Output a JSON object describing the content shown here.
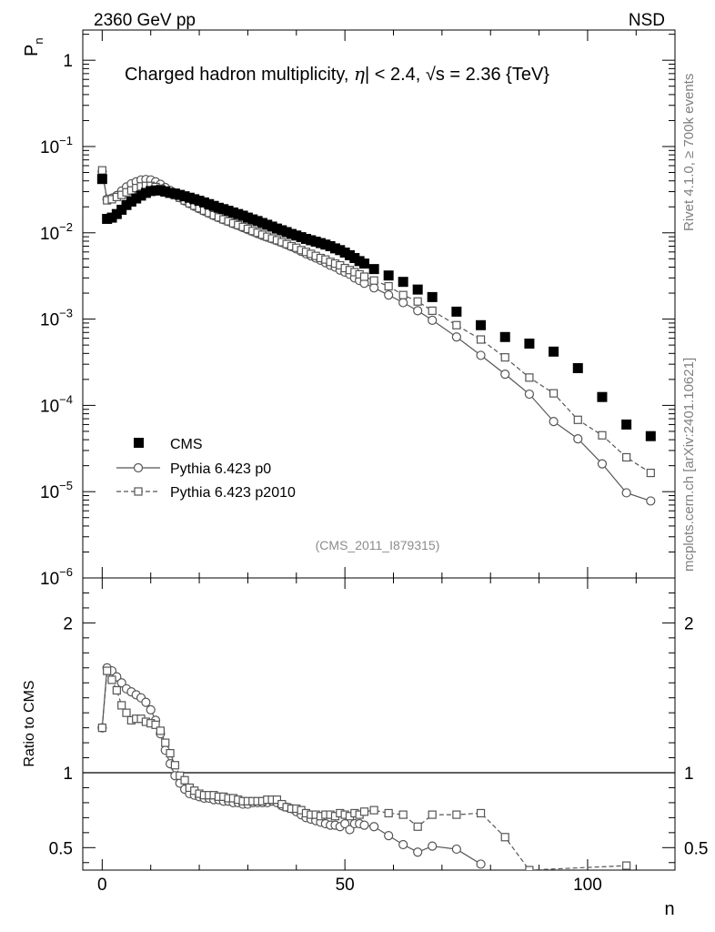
{
  "header": {
    "left_label": "2360 GeV pp",
    "right_label": "NSD"
  },
  "side_text": {
    "rivet": "Rivet 4.1.0, ≥ 700k events",
    "mcplots": "mcplots.cern.ch [arXiv:2401.10621]"
  },
  "chart_data": {
    "type": "scatter",
    "title": "Charged hadron multiplicity, |η| < 2.4, √s = 2.36 {TeV}",
    "title_parts": {
      "prefix": "Charged hadron multiplicity, ",
      "eta": "η",
      "middle": "| < 2.4, ",
      "sqrt": "√",
      "s": "s",
      "suffix": " = 2.36 {TeV}"
    },
    "analysis_tag": "(CMS_2011_I879315)",
    "xlabel": "n",
    "ylabel_main": {
      "base": "P",
      "sub": "n"
    },
    "ylabel_ratio": "Ratio to CMS",
    "xlim": [
      -4,
      118
    ],
    "xticks": [
      {
        "v": 0,
        "label": "0"
      },
      {
        "v": 50,
        "label": "50"
      },
      {
        "v": 100,
        "label": "100"
      }
    ],
    "main_ylim_log10": [
      -6,
      0.35
    ],
    "main_yticks": [
      {
        "exp": 0,
        "label": "1"
      },
      {
        "exp": -1,
        "base": "10",
        "sup": "−1"
      },
      {
        "exp": -2,
        "base": "10",
        "sup": "−2"
      },
      {
        "exp": -3,
        "base": "10",
        "sup": "−3"
      },
      {
        "exp": -4,
        "base": "10",
        "sup": "−4"
      },
      {
        "exp": -5,
        "base": "10",
        "sup": "−5"
      },
      {
        "exp": -6,
        "base": "10",
        "sup": "−6"
      }
    ],
    "ratio_ylim": [
      0.35,
      2.3
    ],
    "ratio_yticks": [
      {
        "v": 0.5,
        "label": "0.5"
      },
      {
        "v": 1,
        "label": "1"
      },
      {
        "v": 2,
        "label": "2"
      }
    ],
    "legend": {
      "position": "lower-left",
      "entries": [
        {
          "label": "CMS",
          "marker": "filled-square",
          "line": "none"
        },
        {
          "label": "Pythia 6.423 p0",
          "marker": "open-circle",
          "line": "solid"
        },
        {
          "label": "Pythia 6.423 p2010",
          "marker": "open-square",
          "line": "dashed"
        }
      ]
    },
    "series": [
      {
        "name": "CMS",
        "x": [
          0,
          1,
          2,
          3,
          4,
          5,
          6,
          7,
          8,
          9,
          10,
          11,
          12,
          13,
          14,
          15,
          16,
          17,
          18,
          19,
          20,
          21,
          22,
          23,
          24,
          25,
          26,
          27,
          28,
          29,
          30,
          31,
          32,
          33,
          34,
          35,
          36,
          37,
          38,
          39,
          40,
          41,
          42,
          43,
          44,
          45,
          46,
          47,
          48,
          49,
          50,
          51,
          52,
          53,
          54,
          56,
          59,
          62,
          65,
          68,
          73,
          78,
          83,
          88,
          93,
          98,
          103,
          108,
          113
        ],
        "y": [
          0.042,
          0.0145,
          0.015,
          0.0165,
          0.0185,
          0.021,
          0.023,
          0.025,
          0.027,
          0.029,
          0.0305,
          0.031,
          0.031,
          0.03,
          0.029,
          0.0285,
          0.0275,
          0.0265,
          0.0255,
          0.0245,
          0.0235,
          0.0225,
          0.0215,
          0.0205,
          0.0195,
          0.0188,
          0.018,
          0.0172,
          0.0165,
          0.0158,
          0.015,
          0.0143,
          0.0137,
          0.013,
          0.0124,
          0.0118,
          0.0112,
          0.0107,
          0.0102,
          0.0097,
          0.0093,
          0.0089,
          0.0085,
          0.0082,
          0.0079,
          0.0076,
          0.0073,
          0.007,
          0.0066,
          0.0063,
          0.0059,
          0.0055,
          0.0051,
          0.0047,
          0.0044,
          0.0038,
          0.0032,
          0.0027,
          0.0022,
          0.0018,
          0.00122,
          0.00085,
          0.00062,
          0.00052,
          0.00042,
          0.00027,
          0.000125,
          6e-05,
          4.4e-05
        ]
      },
      {
        "name": "Pythia 6.423 p0",
        "x": [
          0,
          1,
          2,
          3,
          4,
          5,
          6,
          7,
          8,
          9,
          10,
          11,
          12,
          13,
          14,
          15,
          16,
          17,
          18,
          19,
          20,
          21,
          22,
          23,
          24,
          25,
          26,
          27,
          28,
          29,
          30,
          31,
          32,
          33,
          34,
          35,
          36,
          37,
          38,
          39,
          40,
          41,
          42,
          43,
          44,
          45,
          46,
          47,
          48,
          49,
          50,
          51,
          52,
          53,
          54,
          56,
          59,
          62,
          65,
          68,
          73,
          78,
          83,
          88,
          93,
          98,
          103,
          108,
          113
        ],
        "y": [
          0.051,
          0.0245,
          0.0252,
          0.027,
          0.0305,
          0.034,
          0.037,
          0.039,
          0.041,
          0.0415,
          0.041,
          0.039,
          0.0365,
          0.0335,
          0.031,
          0.028,
          0.0255,
          0.0235,
          0.0218,
          0.0203,
          0.019,
          0.0178,
          0.0168,
          0.0158,
          0.015,
          0.0142,
          0.0135,
          0.0128,
          0.0122,
          0.0115,
          0.0109,
          0.0103,
          0.0098,
          0.0093,
          0.0089,
          0.0085,
          0.0081,
          0.0077,
          0.0073,
          0.0069,
          0.0065,
          0.0061,
          0.0057,
          0.0054,
          0.0051,
          0.0048,
          0.0045,
          0.0042,
          0.004,
          0.0037,
          0.0035,
          0.0033,
          0.003,
          0.0028,
          0.0026,
          0.0023,
          0.0019,
          0.00155,
          0.00125,
          0.00097,
          0.00062,
          0.00038,
          0.00023,
          0.000135,
          6.5e-05,
          4.1e-05,
          2.1e-05,
          9.7e-06,
          7.8e-06
        ]
      },
      {
        "name": "Pythia 6.423 p2010",
        "x": [
          0,
          1,
          2,
          3,
          4,
          5,
          6,
          7,
          8,
          9,
          10,
          11,
          12,
          13,
          14,
          15,
          16,
          17,
          18,
          19,
          20,
          21,
          22,
          23,
          24,
          25,
          26,
          27,
          28,
          29,
          30,
          31,
          32,
          33,
          34,
          35,
          36,
          37,
          38,
          39,
          40,
          41,
          42,
          43,
          44,
          45,
          46,
          47,
          48,
          49,
          50,
          51,
          52,
          53,
          54,
          56,
          59,
          62,
          65,
          68,
          73,
          78,
          83,
          88,
          93,
          98,
          103,
          108,
          113
        ],
        "y": [
          0.053,
          0.0238,
          0.0245,
          0.026,
          0.0275,
          0.0295,
          0.031,
          0.033,
          0.0345,
          0.035,
          0.035,
          0.034,
          0.0325,
          0.031,
          0.029,
          0.0272,
          0.0255,
          0.0237,
          0.022,
          0.0206,
          0.0193,
          0.0181,
          0.017,
          0.016,
          0.0151,
          0.0143,
          0.0136,
          0.0129,
          0.0123,
          0.0117,
          0.0111,
          0.0105,
          0.01,
          0.0095,
          0.009,
          0.0086,
          0.0082,
          0.0078,
          0.0074,
          0.007,
          0.0067,
          0.0063,
          0.006,
          0.0057,
          0.0054,
          0.0051,
          0.0049,
          0.0046,
          0.0044,
          0.0042,
          0.0039,
          0.0037,
          0.0035,
          0.0033,
          0.0031,
          0.0028,
          0.0024,
          0.0019,
          0.0016,
          0.00125,
          0.00085,
          0.00058,
          0.00036,
          0.00021,
          0.000138,
          6.8e-05,
          4.5e-05,
          2.5e-05,
          1.65e-05
        ]
      }
    ],
    "ratio_series": [
      {
        "name": "Pythia 6.423 p0",
        "x": [
          0,
          1,
          2,
          3,
          4,
          5,
          6,
          7,
          8,
          9,
          10,
          11,
          12,
          13,
          14,
          15,
          16,
          17,
          18,
          19,
          20,
          21,
          22,
          23,
          24,
          25,
          26,
          27,
          28,
          29,
          30,
          31,
          32,
          33,
          34,
          35,
          36,
          37,
          38,
          39,
          40,
          41,
          42,
          43,
          44,
          45,
          46,
          47,
          48,
          49,
          50,
          51,
          52,
          53,
          54,
          56,
          59,
          62,
          65,
          68,
          73,
          78
        ],
        "y": [
          1.3,
          1.7,
          1.68,
          1.64,
          1.6,
          1.56,
          1.54,
          1.52,
          1.5,
          1.47,
          1.42,
          1.35,
          1.26,
          1.15,
          1.06,
          0.98,
          0.93,
          0.89,
          0.86,
          0.85,
          0.84,
          0.83,
          0.83,
          0.82,
          0.82,
          0.81,
          0.81,
          0.8,
          0.8,
          0.79,
          0.79,
          0.8,
          0.8,
          0.8,
          0.8,
          0.81,
          0.8,
          0.78,
          0.77,
          0.76,
          0.74,
          0.72,
          0.7,
          0.69,
          0.68,
          0.67,
          0.66,
          0.65,
          0.65,
          0.64,
          0.66,
          0.62,
          0.66,
          0.66,
          0.65,
          0.64,
          0.58,
          0.52,
          0.47,
          0.51,
          0.49,
          0.39
        ]
      },
      {
        "name": "Pythia 6.423 p2010",
        "x": [
          0,
          1,
          2,
          3,
          4,
          5,
          6,
          7,
          8,
          9,
          10,
          11,
          12,
          13,
          14,
          15,
          16,
          17,
          18,
          19,
          20,
          21,
          22,
          23,
          24,
          25,
          26,
          27,
          28,
          29,
          30,
          31,
          32,
          33,
          34,
          35,
          36,
          37,
          38,
          39,
          40,
          41,
          42,
          43,
          44,
          45,
          46,
          47,
          48,
          49,
          50,
          51,
          52,
          53,
          54,
          56,
          59,
          62,
          65,
          68,
          73,
          78,
          83,
          88,
          108
        ],
        "y": [
          1.3,
          1.68,
          1.62,
          1.55,
          1.45,
          1.4,
          1.35,
          1.36,
          1.36,
          1.34,
          1.33,
          1.32,
          1.28,
          1.2,
          1.13,
          1.05,
          0.98,
          0.95,
          0.9,
          0.88,
          0.86,
          0.85,
          0.85,
          0.85,
          0.84,
          0.84,
          0.83,
          0.83,
          0.82,
          0.81,
          0.81,
          0.81,
          0.81,
          0.81,
          0.82,
          0.82,
          0.82,
          0.79,
          0.77,
          0.76,
          0.76,
          0.75,
          0.73,
          0.72,
          0.72,
          0.71,
          0.72,
          0.72,
          0.71,
          0.73,
          0.72,
          0.71,
          0.73,
          0.72,
          0.74,
          0.75,
          0.73,
          0.72,
          0.64,
          0.72,
          0.72,
          0.73,
          0.57,
          0.35,
          0.38
        ]
      }
    ]
  }
}
